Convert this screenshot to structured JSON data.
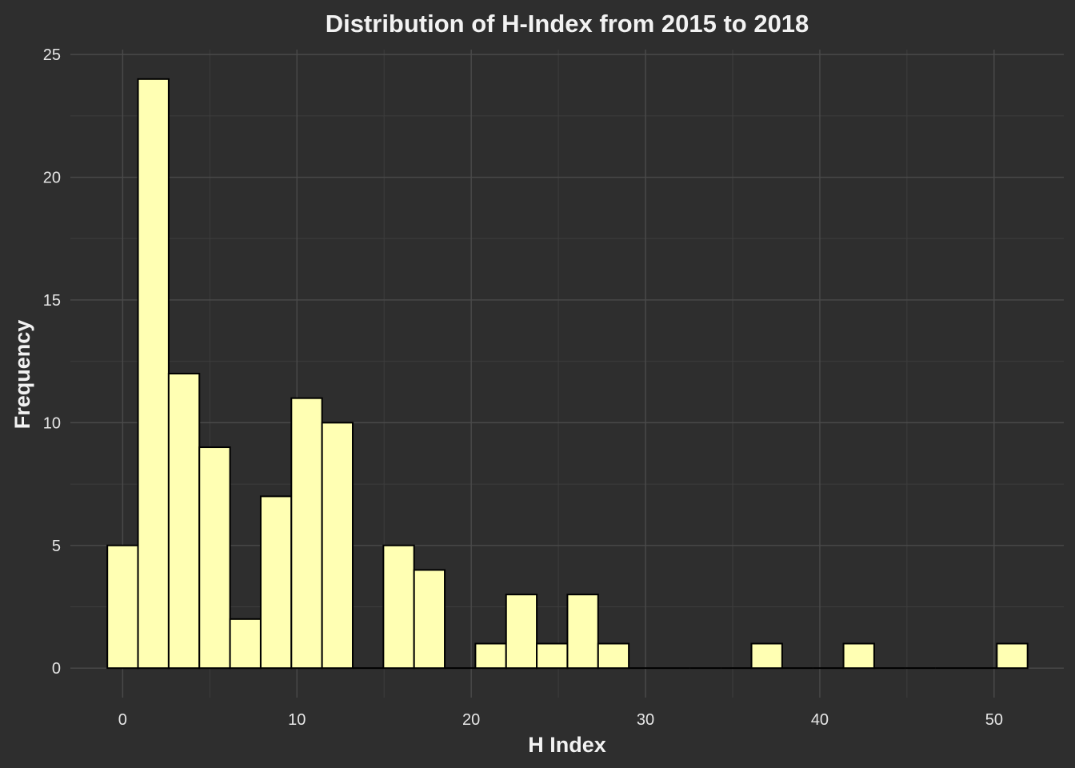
{
  "chart_data": {
    "type": "bar",
    "title": "Distribution of H-Index from 2015 to 2018",
    "xlabel": "H Index",
    "ylabel": "Frequency",
    "xlim": [
      -3.0,
      54.0
    ],
    "ylim": [
      -1.2,
      25.2
    ],
    "x_ticks": [
      0,
      10,
      20,
      30,
      40,
      50
    ],
    "y_ticks": [
      0,
      5,
      10,
      15,
      20,
      25
    ],
    "bin_width": 1.76,
    "bin_start": -0.88,
    "values": [
      5,
      24,
      12,
      9,
      2,
      7,
      11,
      10,
      0,
      5,
      4,
      0,
      1,
      3,
      1,
      3,
      1,
      0,
      0,
      0,
      0,
      1,
      0,
      0,
      1,
      0,
      0,
      0,
      0,
      1
    ],
    "grid": true,
    "legend": "none",
    "colors": {
      "background": "#2e2e2e",
      "bar_fill": "#ffffb3",
      "bar_outline": "#000000",
      "grid_major": "#4a4a4a",
      "grid_minor": "#3d3d3d",
      "text": "#f2f2f2"
    }
  }
}
